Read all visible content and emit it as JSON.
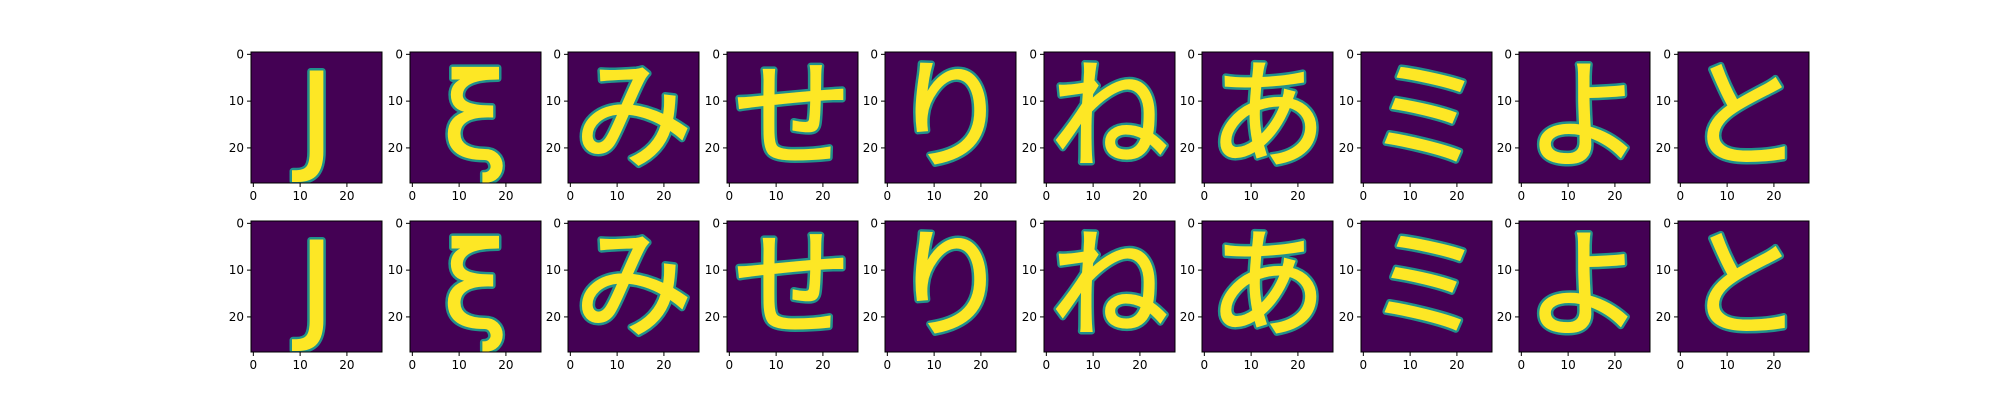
{
  "colors": {
    "background": "#440154",
    "stroke": "#fde725",
    "stroke_edge": "#21918c",
    "axis": "#000000"
  },
  "ticks": {
    "x": [
      "0",
      "10",
      "20"
    ],
    "y": [
      "0",
      "10",
      "20"
    ]
  },
  "rows": [
    {
      "name": "top-row",
      "panels": [
        {
          "glyph": "J"
        },
        {
          "glyph": "ξ"
        },
        {
          "glyph": "み"
        },
        {
          "glyph": "せ"
        },
        {
          "glyph": "り"
        },
        {
          "glyph": "ね"
        },
        {
          "glyph": "あ"
        },
        {
          "glyph": "ミ"
        },
        {
          "glyph": "よ"
        },
        {
          "glyph": "と"
        }
      ]
    },
    {
      "name": "bottom-row",
      "panels": [
        {
          "glyph": "J"
        },
        {
          "glyph": "ξ"
        },
        {
          "glyph": "み"
        },
        {
          "glyph": "せ"
        },
        {
          "glyph": "り"
        },
        {
          "glyph": "ね"
        },
        {
          "glyph": "あ"
        },
        {
          "glyph": "ミ"
        },
        {
          "glyph": "よ"
        },
        {
          "glyph": "と"
        }
      ]
    }
  ]
}
